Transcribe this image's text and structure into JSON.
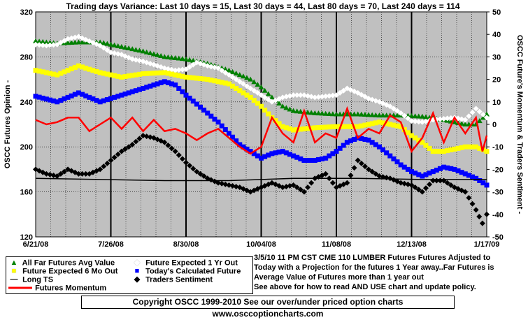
{
  "chart_data": {
    "type": "line",
    "title": "Trading days Variance:  Last 10 days = 15,  Last 30 days = 44,  Last 80 days = 70,  Last 240 days = 114",
    "ylabel_left": "OSCC Futures Opinion -",
    "ylabel_right": "OSCC Future's Momentum & Traders Sentiment -",
    "ylim_left": [
      120,
      320
    ],
    "ylim_right": [
      -50,
      50
    ],
    "yticks_left": [
      "120",
      "160",
      "200",
      "240",
      "280",
      "320"
    ],
    "yticks_right": [
      "-50",
      "-40",
      "-30",
      "-20",
      "-10",
      "0",
      "10",
      "20",
      "30",
      "40",
      "50"
    ],
    "x_tick_labels": [
      "6/21/08",
      "7/26/08",
      "8/30/08",
      "10/04/08",
      "11/08/08",
      "12/13/08",
      "1/17/09"
    ],
    "x_range_days": 210,
    "grid": true,
    "background": "#c0c0c0",
    "series": [
      {
        "name": "All Far Futures Avg Value",
        "color": "#008000",
        "marker": "triangle",
        "axis": "left",
        "points": [
          [
            0,
            294
          ],
          [
            10,
            292
          ],
          [
            20,
            293
          ],
          [
            30,
            293
          ],
          [
            40,
            289
          ],
          [
            50,
            285
          ],
          [
            60,
            280
          ],
          [
            70,
            278
          ],
          [
            80,
            274
          ],
          [
            90,
            268
          ],
          [
            95,
            264
          ],
          [
            100,
            260
          ],
          [
            105,
            253
          ],
          [
            110,
            244
          ],
          [
            115,
            236
          ],
          [
            120,
            232
          ],
          [
            130,
            230
          ],
          [
            140,
            229
          ],
          [
            150,
            229
          ],
          [
            160,
            228
          ],
          [
            170,
            228
          ],
          [
            180,
            227
          ],
          [
            190,
            224
          ],
          [
            200,
            220
          ],
          [
            205,
            220
          ],
          [
            210,
            229
          ]
        ]
      },
      {
        "name": "Future Expected 1 Yr Out",
        "color": "#ffffff",
        "marker": "diamond",
        "axis": "left",
        "points": [
          [
            0,
            291
          ],
          [
            5,
            290
          ],
          [
            10,
            291
          ],
          [
            15,
            296
          ],
          [
            20,
            298
          ],
          [
            25,
            294
          ],
          [
            30,
            290
          ],
          [
            35,
            284
          ],
          [
            40,
            282
          ],
          [
            45,
            278
          ],
          [
            50,
            276
          ],
          [
            55,
            273
          ],
          [
            60,
            270
          ],
          [
            65,
            268
          ],
          [
            70,
            269
          ],
          [
            75,
            275
          ],
          [
            80,
            272
          ],
          [
            85,
            270
          ],
          [
            90,
            264
          ],
          [
            95,
            258
          ],
          [
            100,
            252
          ],
          [
            105,
            246
          ],
          [
            110,
            240
          ],
          [
            115,
            244
          ],
          [
            120,
            246
          ],
          [
            125,
            246
          ],
          [
            130,
            244
          ],
          [
            135,
            245
          ],
          [
            140,
            246
          ],
          [
            145,
            252
          ],
          [
            150,
            248
          ],
          [
            155,
            243
          ],
          [
            160,
            240
          ],
          [
            165,
            236
          ],
          [
            170,
            230
          ],
          [
            175,
            223
          ],
          [
            180,
            222
          ],
          [
            185,
            224
          ],
          [
            190,
            225
          ],
          [
            195,
            226
          ],
          [
            200,
            224
          ],
          [
            205,
            234
          ],
          [
            210,
            226
          ]
        ]
      },
      {
        "name": "Future Expected 6 Mo Out",
        "color": "#ffff00",
        "marker": "square",
        "axis": "left",
        "points": [
          [
            0,
            268
          ],
          [
            10,
            264
          ],
          [
            20,
            272
          ],
          [
            30,
            266
          ],
          [
            40,
            262
          ],
          [
            50,
            265
          ],
          [
            60,
            266
          ],
          [
            70,
            262
          ],
          [
            80,
            260
          ],
          [
            90,
            256
          ],
          [
            95,
            250
          ],
          [
            100,
            244
          ],
          [
            105,
            236
          ],
          [
            110,
            226
          ],
          [
            115,
            218
          ],
          [
            120,
            215
          ],
          [
            130,
            217
          ],
          [
            140,
            218
          ],
          [
            150,
            218
          ],
          [
            160,
            222
          ],
          [
            170,
            218
          ],
          [
            175,
            210
          ],
          [
            180,
            204
          ],
          [
            185,
            196
          ],
          [
            190,
            196
          ],
          [
            195,
            198
          ],
          [
            200,
            200
          ],
          [
            205,
            200
          ],
          [
            210,
            196
          ]
        ]
      },
      {
        "name": "Today's Calculated Future",
        "color": "#0000ff",
        "marker": "square",
        "axis": "left",
        "points": [
          [
            0,
            245
          ],
          [
            10,
            240
          ],
          [
            20,
            248
          ],
          [
            30,
            240
          ],
          [
            40,
            246
          ],
          [
            50,
            252
          ],
          [
            60,
            258
          ],
          [
            65,
            255
          ],
          [
            70,
            246
          ],
          [
            75,
            238
          ],
          [
            80,
            230
          ],
          [
            85,
            222
          ],
          [
            90,
            212
          ],
          [
            95,
            202
          ],
          [
            100,
            196
          ],
          [
            105,
            190
          ],
          [
            110,
            194
          ],
          [
            115,
            196
          ],
          [
            120,
            192
          ],
          [
            125,
            188
          ],
          [
            130,
            188
          ],
          [
            135,
            190
          ],
          [
            140,
            196
          ],
          [
            145,
            204
          ],
          [
            150,
            208
          ],
          [
            155,
            206
          ],
          [
            160,
            200
          ],
          [
            165,
            192
          ],
          [
            170,
            184
          ],
          [
            175,
            178
          ],
          [
            180,
            174
          ],
          [
            185,
            178
          ],
          [
            190,
            182
          ],
          [
            195,
            180
          ],
          [
            200,
            176
          ],
          [
            205,
            172
          ],
          [
            210,
            166
          ]
        ]
      },
      {
        "name": "Long TS",
        "color": "#000000",
        "marker": "line",
        "axis": "left",
        "points": [
          [
            0,
            172
          ],
          [
            30,
            171
          ],
          [
            60,
            170
          ],
          [
            90,
            170
          ],
          [
            120,
            172
          ],
          [
            150,
            172
          ],
          [
            180,
            171
          ],
          [
            210,
            171
          ]
        ]
      },
      {
        "name": "Futures Momentum",
        "color": "#ff0000",
        "marker": "thick-line",
        "axis": "right",
        "points": [
          [
            0,
            2
          ],
          [
            5,
            0
          ],
          [
            10,
            1
          ],
          [
            15,
            3
          ],
          [
            20,
            3
          ],
          [
            25,
            -3
          ],
          [
            30,
            0
          ],
          [
            35,
            3
          ],
          [
            40,
            -2
          ],
          [
            45,
            3
          ],
          [
            50,
            -3
          ],
          [
            55,
            2
          ],
          [
            60,
            -3
          ],
          [
            65,
            -2
          ],
          [
            70,
            -4
          ],
          [
            75,
            -7
          ],
          [
            80,
            -4
          ],
          [
            85,
            -2
          ],
          [
            90,
            -6
          ],
          [
            95,
            -10
          ],
          [
            100,
            -13
          ],
          [
            105,
            -10
          ],
          [
            110,
            3
          ],
          [
            115,
            -4
          ],
          [
            120,
            -8
          ],
          [
            125,
            6
          ],
          [
            130,
            -8
          ],
          [
            135,
            -4
          ],
          [
            140,
            -6
          ],
          [
            145,
            7
          ],
          [
            150,
            -6
          ],
          [
            155,
            -2
          ],
          [
            160,
            -4
          ],
          [
            165,
            4
          ],
          [
            170,
            1
          ],
          [
            175,
            -12
          ],
          [
            180,
            -6
          ],
          [
            185,
            5
          ],
          [
            190,
            -8
          ],
          [
            195,
            3
          ],
          [
            200,
            -4
          ],
          [
            205,
            3
          ],
          [
            208,
            -12
          ],
          [
            210,
            -5
          ]
        ]
      },
      {
        "name": "Traders Sentiment",
        "color": "#000000",
        "marker": "diamond",
        "axis": "right",
        "points": [
          [
            0,
            -20
          ],
          [
            5,
            -22
          ],
          [
            10,
            -23
          ],
          [
            15,
            -20
          ],
          [
            20,
            -22
          ],
          [
            25,
            -22
          ],
          [
            30,
            -20
          ],
          [
            35,
            -16
          ],
          [
            40,
            -12
          ],
          [
            45,
            -9
          ],
          [
            50,
            -5
          ],
          [
            55,
            -6
          ],
          [
            60,
            -8
          ],
          [
            65,
            -12
          ],
          [
            70,
            -17
          ],
          [
            75,
            -21
          ],
          [
            80,
            -24
          ],
          [
            85,
            -26
          ],
          [
            90,
            -27
          ],
          [
            95,
            -28
          ],
          [
            100,
            -30
          ],
          [
            105,
            -28
          ],
          [
            110,
            -26
          ],
          [
            115,
            -28
          ],
          [
            120,
            -27
          ],
          [
            125,
            -30
          ],
          [
            130,
            -24
          ],
          [
            135,
            -22
          ],
          [
            140,
            -28
          ],
          [
            145,
            -26
          ],
          [
            150,
            -16
          ],
          [
            155,
            -20
          ],
          [
            160,
            -23
          ],
          [
            165,
            -24
          ],
          [
            170,
            -26
          ],
          [
            175,
            -27
          ],
          [
            180,
            -30
          ],
          [
            185,
            -25
          ],
          [
            190,
            -25
          ],
          [
            195,
            -28
          ],
          [
            200,
            -30
          ],
          [
            205,
            -38
          ],
          [
            208,
            -44
          ],
          [
            210,
            -40
          ]
        ]
      }
    ]
  },
  "note": {
    "line1": "3/5/10 11 PM CST CME 110 LUMBER Futures  Futures Adjusted to",
    "line2": "Today with a Projection for the futures 1 Year away..Far Futures is",
    "line3": "Average Value of Futures more than 1 year out",
    "line4": "See above for how to read AND USE chart and update policy."
  },
  "legend": {
    "item1": "All Far Futures Avg Value",
    "item2": "Future Expected 1 Yr Out",
    "item3": "Future Expected 6 Mo Out",
    "item4": "Today's Calculated Future",
    "item5": "Long TS",
    "item6": "Traders Sentiment",
    "item7": "Futures Momentum"
  },
  "copyright": "Copyright OSCC 1999-2010 See our over/under priced option charts www.osccoptioncharts.com"
}
